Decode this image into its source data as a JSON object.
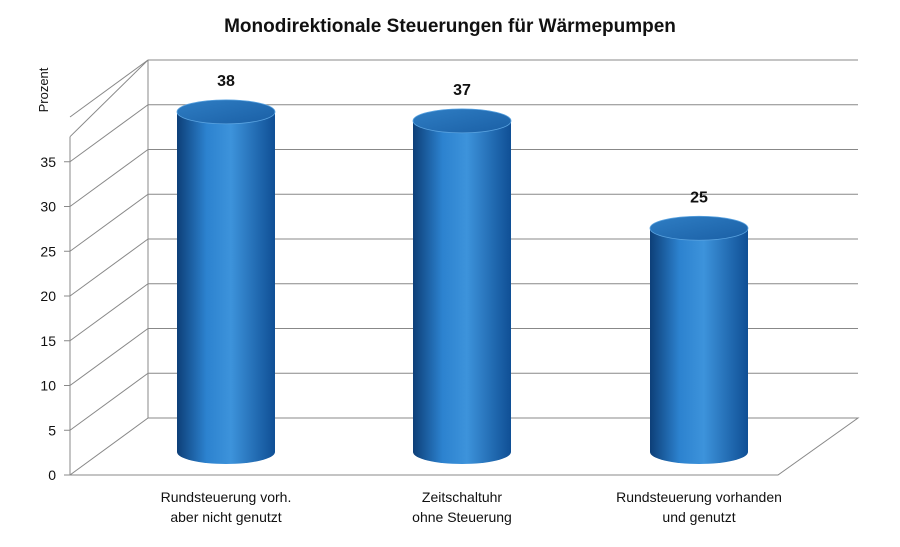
{
  "chart_data": {
    "type": "bar",
    "title": "Monodirektionale Steuerungen für Wärmepumpen",
    "ylabel": "Prozent",
    "xlabel": "",
    "categories": [
      [
        "Rundsteuerung vorh.",
        "aber nicht genutzt"
      ],
      [
        "Zeitschaltuhr",
        "ohne Steuerung"
      ],
      [
        "Rundsteuerung vorhanden",
        "und genutzt"
      ]
    ],
    "values": [
      38,
      37,
      25
    ],
    "value_labels": [
      "38",
      "37",
      "25"
    ],
    "ylim": [
      0,
      40
    ],
    "yticks": [
      0,
      5,
      10,
      15,
      20,
      25,
      30,
      35
    ],
    "grid": true,
    "legend": "none",
    "bar_color": "#1f6fb6",
    "bar_shape": "3d-cylinder"
  }
}
